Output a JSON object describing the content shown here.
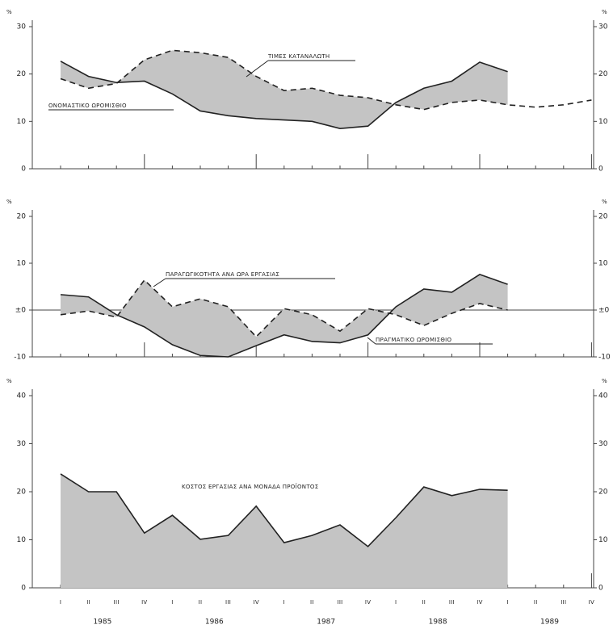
{
  "chart_data": [
    {
      "type": "line",
      "y_unit": "%",
      "ylim": [
        0,
        30
      ],
      "yticks": [
        0,
        10,
        20,
        30
      ],
      "fill_between": true,
      "fill_color": "#c4c4c4",
      "series": [
        {
          "name": "ΟΝΟΜΑΣΤΙΚΟ ΩΡΟΜΙΣΘΙΟ",
          "color": "#222",
          "style": "solid",
          "values": [
            22.7,
            19.5,
            18.2,
            18.5,
            15.8,
            12.2,
            11.2,
            10.6,
            10.3,
            10.0,
            8.5,
            9.0,
            14.0,
            17.0,
            18.5,
            22.5,
            20.5,
            null,
            null,
            null
          ]
        },
        {
          "name": "ΤΙΜΕΣ ΚΑΤΑΝΑΛΩΤΗ",
          "color": "#222",
          "style": "dashed",
          "values": [
            19.0,
            17.0,
            18.0,
            23.0,
            25.0,
            24.5,
            23.5,
            19.5,
            16.5,
            17.0,
            15.5,
            15.0,
            13.5,
            12.5,
            14.0,
            14.5,
            13.5,
            13.0,
            13.5,
            14.5
          ]
        }
      ]
    },
    {
      "type": "line",
      "y_unit": "%",
      "ylim": [
        -10,
        20
      ],
      "yticks": [
        {
          "value": -10,
          "label": "-10"
        },
        {
          "value": 0,
          "label": "±0"
        },
        10,
        20
      ],
      "fill_between": true,
      "fill_color": "#c4c4c4",
      "zero_line": true,
      "series": [
        {
          "name": "ΠΡΑΓΜΑΤΙΚΟ ΩΡΟΜΙΣΘΙΟ",
          "color": "#222",
          "style": "solid",
          "values": [
            3.3,
            2.8,
            -1.0,
            -3.6,
            -7.4,
            -9.7,
            -10.0,
            -7.6,
            -5.3,
            -6.7,
            -7.0,
            -5.3,
            0.7,
            4.5,
            3.8,
            7.6,
            5.5,
            null,
            null,
            null
          ]
        },
        {
          "name": "ΠΑΡΑΓΩΓΙΚΟΤΗΤΑ ΑΝΑ ΩΡΑ ΕΡΓΑΣΙΑΣ",
          "color": "#222",
          "style": "dashed",
          "values": [
            -1.0,
            -0.2,
            -1.5,
            6.4,
            0.7,
            2.4,
            0.7,
            -5.7,
            0.3,
            -1.0,
            -4.5,
            0.3,
            -1.0,
            -3.3,
            -0.7,
            1.4,
            0.0,
            null,
            null,
            null
          ]
        }
      ]
    },
    {
      "type": "area",
      "y_unit": "%",
      "ylim": [
        0,
        40
      ],
      "yticks": [
        0,
        10,
        20,
        30,
        40
      ],
      "fill_color": "#c4c4c4",
      "categories": [
        "I",
        "II",
        "III",
        "IV",
        "I",
        "II",
        "III",
        "IV",
        "I",
        "II",
        "III",
        "IV",
        "I",
        "II",
        "III",
        "IV",
        "I",
        "II",
        "III",
        "IV"
      ],
      "years": [
        "1985",
        "1986",
        "1987",
        "1988",
        "1989"
      ],
      "series": [
        {
          "name": "ΚΟΣΤΟΣ ΕΡΓΑΣΙΑΣ ΑΝΑ ΜΟΝΑΔΑ ΠΡΟΪΟΝΤΟΣ",
          "color": "#222",
          "values": [
            23.7,
            20.0,
            20.0,
            11.4,
            15.1,
            10.1,
            10.9,
            17.0,
            9.4,
            10.9,
            13.1,
            8.6,
            14.6,
            21.0,
            19.2,
            20.5,
            20.3,
            null,
            null,
            null
          ]
        }
      ]
    }
  ]
}
